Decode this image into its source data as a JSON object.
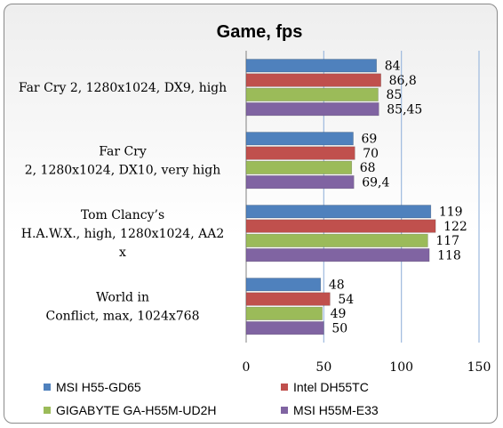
{
  "chart_data": {
    "type": "bar",
    "orientation": "horizontal",
    "title": "Game, fps",
    "xlabel": "",
    "ylabel": "",
    "xlim": [
      0,
      150
    ],
    "ticks": [
      "0",
      "50",
      "100",
      "150"
    ],
    "grid": true,
    "legend_position": "bottom",
    "categories": [
      [
        "Far Cry 2, 1280x1024, DX9, high"
      ],
      [
        "Far Cry",
        "2, 1280x1024, DX10, very high"
      ],
      [
        "Tom Clancy’s",
        "H.A.W.X., high, 1280x1024, AA2",
        "x"
      ],
      [
        "World  in",
        "Conflict, max, 1024x768"
      ]
    ],
    "series": [
      {
        "name": "MSI H55-GD65",
        "color": "#4f81bd",
        "values": [
          84,
          69,
          119,
          48
        ],
        "labels": [
          "84",
          "69",
          "119",
          "48"
        ]
      },
      {
        "name": "Intel DH55TC",
        "color": "#c0504d",
        "values": [
          86.8,
          70,
          122,
          54
        ],
        "labels": [
          "86,8",
          "70",
          "122",
          "54"
        ]
      },
      {
        "name": "GIGABYTE GA-H55M-UD2H",
        "color": "#9bbb59",
        "values": [
          85,
          68,
          117,
          49
        ],
        "labels": [
          "85",
          "68",
          "117",
          "49"
        ]
      },
      {
        "name": "MSI H55M-E33",
        "color": "#8064a2",
        "values": [
          85.45,
          69.4,
          118,
          50
        ],
        "labels": [
          "85,45",
          "69,4",
          "118",
          "50"
        ]
      }
    ]
  }
}
